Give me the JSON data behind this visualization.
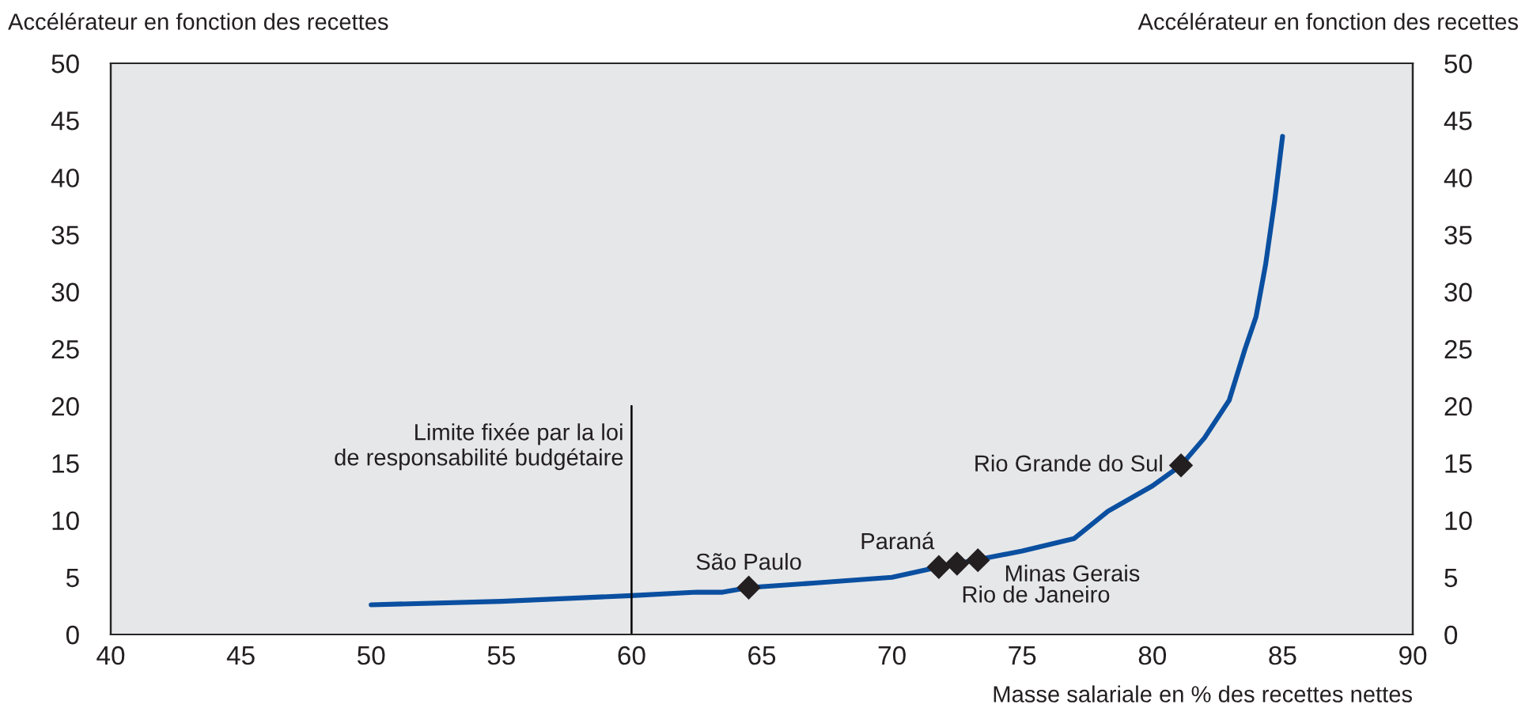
{
  "chart_data": {
    "type": "line",
    "xlabel": "Masse salariale en % des recettes nettes",
    "ylabel": "Accélérateur en fonction des recettes",
    "y2label": "Accélérateur en fonction des recettes",
    "series": [
      {
        "color": "#0a4fa0",
        "x": [
          50,
          55,
          60,
          62.5,
          63.5,
          64.5,
          67,
          70,
          71.8,
          72.5,
          75,
          77,
          78.3,
          80,
          81.1,
          82.0,
          82.95,
          83.56,
          83.98,
          84.35,
          84.7,
          85.0
        ],
        "values": [
          2.6,
          2.9,
          3.4,
          3.7,
          3.7,
          4.1,
          4.5,
          5.0,
          5.9,
          6.2,
          7.3,
          8.4,
          10.8,
          13.0,
          14.8,
          17.2,
          20.5,
          25.0,
          27.8,
          32.4,
          38.0,
          43.6
        ]
      },
      {
        "type": "scatter",
        "color": "#231f20",
        "marker": "diamond",
        "x": [
          64.5,
          71.8,
          72.5,
          73.3,
          81.1
        ],
        "values": [
          4.1,
          5.9,
          6.2,
          6.5,
          14.8
        ]
      }
    ],
    "xlim": [
      40,
      90
    ],
    "xticks": [
      40,
      45,
      50,
      55,
      60,
      65,
      70,
      75,
      80,
      85,
      90
    ],
    "ylim": [
      0,
      50
    ],
    "yticks": [
      0,
      5,
      10,
      15,
      20,
      25,
      30,
      35,
      40,
      45,
      50
    ],
    "y2lim": [
      0,
      50
    ],
    "y2ticks": [
      0,
      5,
      10,
      15,
      20,
      25,
      30,
      35,
      40,
      45,
      50
    ],
    "ref_lines": [
      {
        "axis": "x",
        "value": 60,
        "label": "Limite fixée par la loi\nde responsabilité budgétaire",
        "color": "#000000"
      }
    ],
    "annotations": [
      {
        "text": "São Paulo",
        "x": 64.5,
        "y": 4.1
      },
      {
        "text": "Paraná",
        "x": 71.8,
        "y": 5.9
      },
      {
        "text": "Rio de Janeiro",
        "x": 72.5,
        "y": 6.2
      },
      {
        "text": "Minas Gerais",
        "x": 73.3,
        "y": 6.5
      },
      {
        "text": "Rio Grande do Sul",
        "x": 81.1,
        "y": 14.8
      }
    ],
    "grid": false
  }
}
